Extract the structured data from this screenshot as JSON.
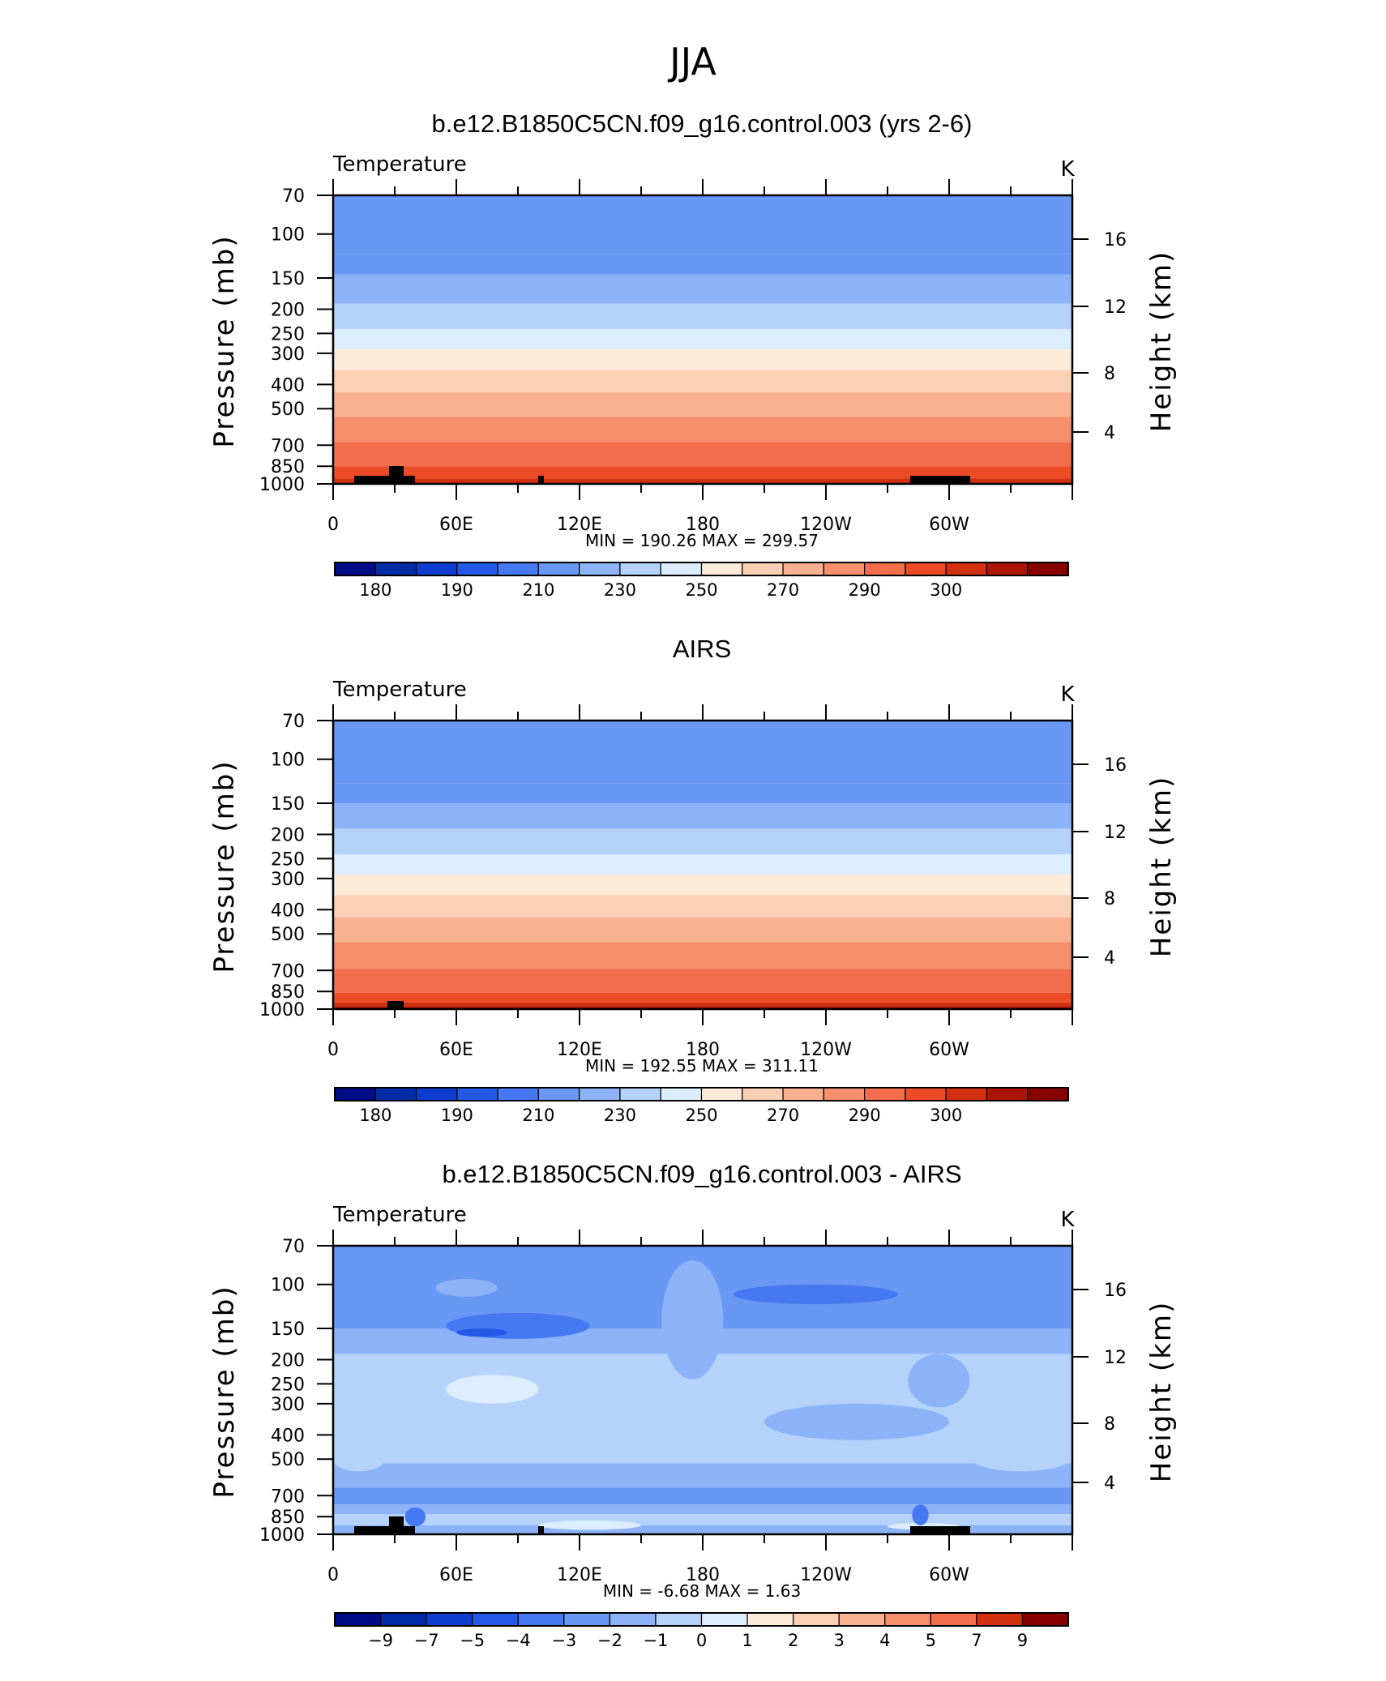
{
  "figure": {
    "title": "JJA"
  },
  "colors": {
    "positive": [
      "#FDEBDA",
      "#FCD0B5",
      "#F9B090",
      "#F68F6C",
      "#F26E4C",
      "#EC4B25",
      "#D3300F",
      "#AC1505",
      "#870000"
    ],
    "negative": [
      "#DCEDFD",
      "#B4D2FA",
      "#8CB2F7",
      "#6897F4",
      "#4578F1",
      "#2459E7",
      "#0E3ED0",
      "#022CA6",
      "#000C86"
    ]
  },
  "chart_data": [
    {
      "type": "heatmap",
      "title": "b.e12.B1850C5CN.f09_g16.control.003 (yrs 2-6)",
      "left_label": "Temperature",
      "right_label": "K",
      "ylabel": "Pressure (mb)",
      "ylabel_right": "Height (km)",
      "y_scale": "log",
      "ylim": [
        1000,
        70
      ],
      "yticks": [
        70,
        100,
        150,
        200,
        250,
        300,
        400,
        500,
        700,
        850,
        1000
      ],
      "yticks_right": [
        4,
        8,
        12,
        16
      ],
      "xlim": [
        0,
        360
      ],
      "xticks": [
        "0",
        "60E",
        "120E",
        "180",
        "120W",
        "60W"
      ],
      "stats": "MIN = 190.26  MAX = 299.57",
      "min": 190.26,
      "max": 299.57,
      "colorbar": {
        "levels": [
          175,
          180,
          185,
          190,
          200,
          210,
          220,
          230,
          240,
          250,
          260,
          270,
          280,
          290,
          295,
          300,
          305
        ],
        "labels": [
          "180",
          "190",
          "210",
          "230",
          "250",
          "270",
          "290",
          "300"
        ],
        "colors": [
          "#000C86",
          "#022CA6",
          "#0E3ED0",
          "#2459E7",
          "#4578F1",
          "#6897F4",
          "#8CB2F7",
          "#B4D2FA",
          "#DCEDFD",
          "#FDEBDA",
          "#FCD0B5",
          "#F9B090",
          "#F68F6C",
          "#F26E4C",
          "#EC4B25",
          "#D3300F",
          "#AC1505",
          "#870000"
        ]
      },
      "layers": [
        {
          "p": 70,
          "value": 200
        },
        {
          "p": 120,
          "value": 205
        },
        {
          "p": 145,
          "value": 215
        },
        {
          "p": 190,
          "value": 225
        },
        {
          "p": 240,
          "value": 235
        },
        {
          "p": 290,
          "value": 245
        },
        {
          "p": 350,
          "value": 255
        },
        {
          "p": 430,
          "value": 265
        },
        {
          "p": 540,
          "value": 275
        },
        {
          "p": 680,
          "value": 285
        },
        {
          "p": 850,
          "value": 292
        },
        {
          "p": 950,
          "value": 297
        }
      ]
    },
    {
      "type": "heatmap",
      "title": "AIRS",
      "left_label": "Temperature",
      "right_label": "K",
      "ylabel": "Pressure (mb)",
      "ylabel_right": "Height (km)",
      "y_scale": "log",
      "ylim": [
        1000,
        70
      ],
      "yticks": [
        70,
        100,
        150,
        200,
        250,
        300,
        400,
        500,
        700,
        850,
        1000
      ],
      "yticks_right": [
        4,
        8,
        12,
        16
      ],
      "xlim": [
        0,
        360
      ],
      "xticks": [
        "0",
        "60E",
        "120E",
        "180",
        "120W",
        "60W"
      ],
      "stats": "MIN = 192.55  MAX = 311.11",
      "min": 192.55,
      "max": 311.11,
      "colorbar": {
        "levels": [
          175,
          180,
          185,
          190,
          200,
          210,
          220,
          230,
          240,
          250,
          260,
          270,
          280,
          290,
          295,
          300,
          305
        ],
        "labels": [
          "180",
          "190",
          "210",
          "230",
          "250",
          "270",
          "290",
          "300"
        ],
        "colors": [
          "#000C86",
          "#022CA6",
          "#0E3ED0",
          "#2459E7",
          "#4578F1",
          "#6897F4",
          "#8CB2F7",
          "#B4D2FA",
          "#DCEDFD",
          "#FDEBDA",
          "#FCD0B5",
          "#F9B090",
          "#F68F6C",
          "#F26E4C",
          "#EC4B25",
          "#D3300F",
          "#AC1505",
          "#870000"
        ]
      },
      "layers": [
        {
          "p": 70,
          "value": 205
        },
        {
          "p": 78,
          "value": 200
        },
        {
          "p": 125,
          "value": 205
        },
        {
          "p": 150,
          "value": 215
        },
        {
          "p": 190,
          "value": 225
        },
        {
          "p": 240,
          "value": 235
        },
        {
          "p": 290,
          "value": 245
        },
        {
          "p": 350,
          "value": 255
        },
        {
          "p": 430,
          "value": 265
        },
        {
          "p": 540,
          "value": 275
        },
        {
          "p": 690,
          "value": 285
        },
        {
          "p": 860,
          "value": 292
        },
        {
          "p": 940,
          "value": 297
        },
        {
          "p": 975,
          "value": 302
        }
      ]
    },
    {
      "type": "heatmap",
      "title": "b.e12.B1850C5CN.f09_g16.control.003 - AIRS",
      "left_label": "Temperature",
      "right_label": "K",
      "ylabel": "Pressure (mb)",
      "ylabel_right": "Height (km)",
      "y_scale": "log",
      "ylim": [
        1000,
        70
      ],
      "yticks": [
        70,
        100,
        150,
        200,
        250,
        300,
        400,
        500,
        700,
        850,
        1000
      ],
      "yticks_right": [
        4,
        8,
        12,
        16
      ],
      "xlim": [
        0,
        360
      ],
      "xticks": [
        "0",
        "60E",
        "120E",
        "180",
        "120W",
        "60W"
      ],
      "stats": "MIN = -6.68  MAX = 1.63",
      "min": -6.68,
      "max": 1.63,
      "colorbar": {
        "levels": [
          -9,
          -7,
          -5,
          -4,
          -3,
          -2,
          -1,
          0,
          1,
          2,
          3,
          4,
          5,
          7,
          9
        ],
        "labels": [
          "−9",
          "−7",
          "−5",
          "−4",
          "−3",
          "−2",
          "−1",
          "0",
          "1",
          "2",
          "3",
          "4",
          "5",
          "7",
          "9"
        ],
        "colors": [
          "#000C86",
          "#022CA6",
          "#0E3ED0",
          "#2459E7",
          "#4578F1",
          "#6897F4",
          "#8CB2F7",
          "#B4D2FA",
          "#DCEDFD",
          "#FDEBDA",
          "#FCD0B5",
          "#F9B090",
          "#F68F6C",
          "#F26E4C",
          "#D3300F",
          "#870000"
        ]
      },
      "layers": [
        {
          "p": 70,
          "value": -2.5
        },
        {
          "p": 150,
          "value": -1.5
        },
        {
          "p": 190,
          "value": -0.5
        },
        {
          "p": 520,
          "value": -1.5
        },
        {
          "p": 650,
          "value": -2.5
        },
        {
          "p": 760,
          "value": -1.5
        },
        {
          "p": 830,
          "value": -0.5
        },
        {
          "p": 920,
          "value": -1.5
        }
      ],
      "features": [
        {
          "lon0": 55,
          "lon1": 125,
          "p0": 130,
          "p1": 165,
          "value": -3.5
        },
        {
          "lon0": 60,
          "lon1": 85,
          "p0": 150,
          "p1": 162,
          "value": -4.5
        },
        {
          "lon0": 195,
          "lon1": 275,
          "p0": 100,
          "p1": 120,
          "value": -3.5
        },
        {
          "lon0": 50,
          "lon1": 80,
          "p0": 95,
          "p1": 112,
          "value": -1.5
        },
        {
          "lon0": 55,
          "lon1": 100,
          "p0": 230,
          "p1": 300,
          "value": 0.5
        },
        {
          "lon0": 160,
          "lon1": 190,
          "p0": 80,
          "p1": 240,
          "value": -1.5
        },
        {
          "lon0": 210,
          "lon1": 300,
          "p0": 300,
          "p1": 420,
          "value": -1.5
        },
        {
          "lon0": 280,
          "lon1": 310,
          "p0": 190,
          "p1": 310,
          "value": -1.5
        },
        {
          "lon0": 310,
          "lon1": 360,
          "p0": 430,
          "p1": 560,
          "value": -0.5
        },
        {
          "lon0": 0,
          "lon1": 25,
          "p0": 450,
          "p1": 560,
          "value": -0.5
        },
        {
          "lon0": 100,
          "lon1": 150,
          "p0": 880,
          "p1": 960,
          "value": 0.5
        },
        {
          "lon0": 270,
          "lon1": 305,
          "p0": 900,
          "p1": 960,
          "value": 0.5
        },
        {
          "lon0": 35,
          "lon1": 45,
          "p0": 780,
          "p1": 930,
          "value": -3.5
        },
        {
          "lon0": 282,
          "lon1": 290,
          "p0": 760,
          "p1": 920,
          "value": -3.5
        }
      ]
    }
  ]
}
